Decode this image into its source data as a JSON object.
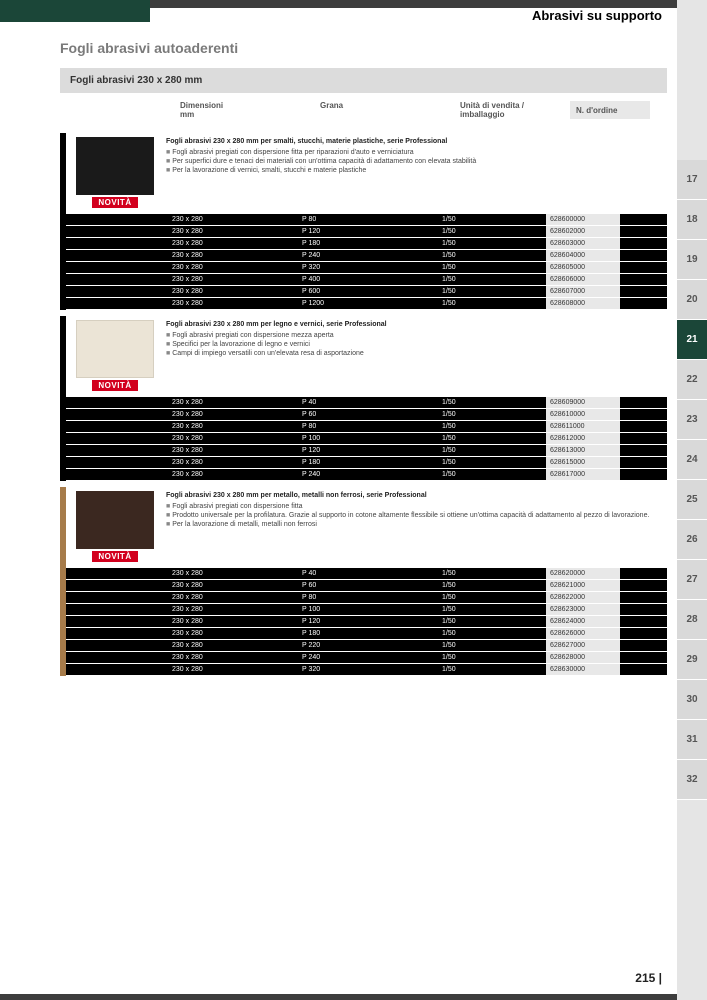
{
  "header": {
    "category": "Abrasivi su supporto"
  },
  "page": {
    "title": "Fogli abrasivi autoaderenti",
    "section_header": "Fogli abrasivi 230 x 280 mm",
    "number": "215 |"
  },
  "columns": {
    "dim": "Dimensioni\nmm",
    "grana": "Grana",
    "unit": "Unità di vendita / imballaggio",
    "ord": "N. d'ordine"
  },
  "novita_label": "NOVITÀ",
  "products": [
    {
      "accent": "black",
      "img": "dark",
      "title": "Fogli abrasivi 230 x 280 mm per smalti, stucchi, materie plastiche, serie Professional",
      "bullets": [
        "Fogli abrasivi pregiati con dispersione fitta per riparazioni d'auto e verniciatura",
        "Per superfici dure e tenaci dei materiali con un'ottima capacità di adattamento con elevata stabilità",
        "Per la lavorazione di vernici, smalti, stucchi e materie plastiche"
      ],
      "rows": [
        {
          "dim": "230 x 280",
          "grana": "P 80",
          "unit": "1/50",
          "ord": "628600000"
        },
        {
          "dim": "230 x 280",
          "grana": "P 120",
          "unit": "1/50",
          "ord": "628602000"
        },
        {
          "dim": "230 x 280",
          "grana": "P 180",
          "unit": "1/50",
          "ord": "628603000"
        },
        {
          "dim": "230 x 280",
          "grana": "P 240",
          "unit": "1/50",
          "ord": "628604000"
        },
        {
          "dim": "230 x 280",
          "grana": "P 320",
          "unit": "1/50",
          "ord": "628605000"
        },
        {
          "dim": "230 x 280",
          "grana": "P 400",
          "unit": "1/50",
          "ord": "628606000"
        },
        {
          "dim": "230 x 280",
          "grana": "P 600",
          "unit": "1/50",
          "ord": "628607000"
        },
        {
          "dim": "230 x 280",
          "grana": "P 1200",
          "unit": "1/50",
          "ord": "628608000"
        }
      ]
    },
    {
      "accent": "black",
      "img": "cream",
      "title": "Fogli abrasivi 230 x 280 mm per legno e vernici, serie Professional",
      "bullets": [
        "Fogli abrasivi pregiati con dispersione mezza aperta",
        "Specifici per la lavorazione di legno e vernici",
        "Campi di impiego versatili con un'elevata resa di asportazione"
      ],
      "rows": [
        {
          "dim": "230 x 280",
          "grana": "P 40",
          "unit": "1/50",
          "ord": "628609000"
        },
        {
          "dim": "230 x 280",
          "grana": "P 60",
          "unit": "1/50",
          "ord": "628610000"
        },
        {
          "dim": "230 x 280",
          "grana": "P 80",
          "unit": "1/50",
          "ord": "628611000"
        },
        {
          "dim": "230 x 280",
          "grana": "P 100",
          "unit": "1/50",
          "ord": "628612000"
        },
        {
          "dim": "230 x 280",
          "grana": "P 120",
          "unit": "1/50",
          "ord": "628613000"
        },
        {
          "dim": "230 x 280",
          "grana": "P 180",
          "unit": "1/50",
          "ord": "628615000"
        },
        {
          "dim": "230 x 280",
          "grana": "P 240",
          "unit": "1/50",
          "ord": "628617000"
        }
      ]
    },
    {
      "accent": "tan",
      "img": "brown",
      "title": "Fogli abrasivi 230 x 280 mm per metallo, metalli non ferrosi, serie Professional",
      "bullets": [
        "Fogli abrasivi pregiati con dispersione fitta",
        "Prodotto universale per la profilatura. Grazie al supporto in cotone altamente flessibile si ottiene un'ottima capacità di adattamento al pezzo di lavorazione.",
        "Per la lavorazione di metalli, metalli non ferrosi"
      ],
      "rows": [
        {
          "dim": "230 x 280",
          "grana": "P 40",
          "unit": "1/50",
          "ord": "628620000"
        },
        {
          "dim": "230 x 280",
          "grana": "P 60",
          "unit": "1/50",
          "ord": "628621000"
        },
        {
          "dim": "230 x 280",
          "grana": "P 80",
          "unit": "1/50",
          "ord": "628622000"
        },
        {
          "dim": "230 x 280",
          "grana": "P 100",
          "unit": "1/50",
          "ord": "628623000"
        },
        {
          "dim": "230 x 280",
          "grana": "P 120",
          "unit": "1/50",
          "ord": "628624000"
        },
        {
          "dim": "230 x 280",
          "grana": "P 180",
          "unit": "1/50",
          "ord": "628626000"
        },
        {
          "dim": "230 x 280",
          "grana": "P 220",
          "unit": "1/50",
          "ord": "628627000"
        },
        {
          "dim": "230 x 280",
          "grana": "P 240",
          "unit": "1/50",
          "ord": "628628000"
        },
        {
          "dim": "230 x 280",
          "grana": "P 320",
          "unit": "1/50",
          "ord": "628630000"
        }
      ]
    }
  ],
  "tabs": [
    "17",
    "18",
    "19",
    "20",
    "21",
    "22",
    "23",
    "24",
    "25",
    "26",
    "27",
    "28",
    "29",
    "30",
    "31",
    "32"
  ],
  "tab_active": "21"
}
